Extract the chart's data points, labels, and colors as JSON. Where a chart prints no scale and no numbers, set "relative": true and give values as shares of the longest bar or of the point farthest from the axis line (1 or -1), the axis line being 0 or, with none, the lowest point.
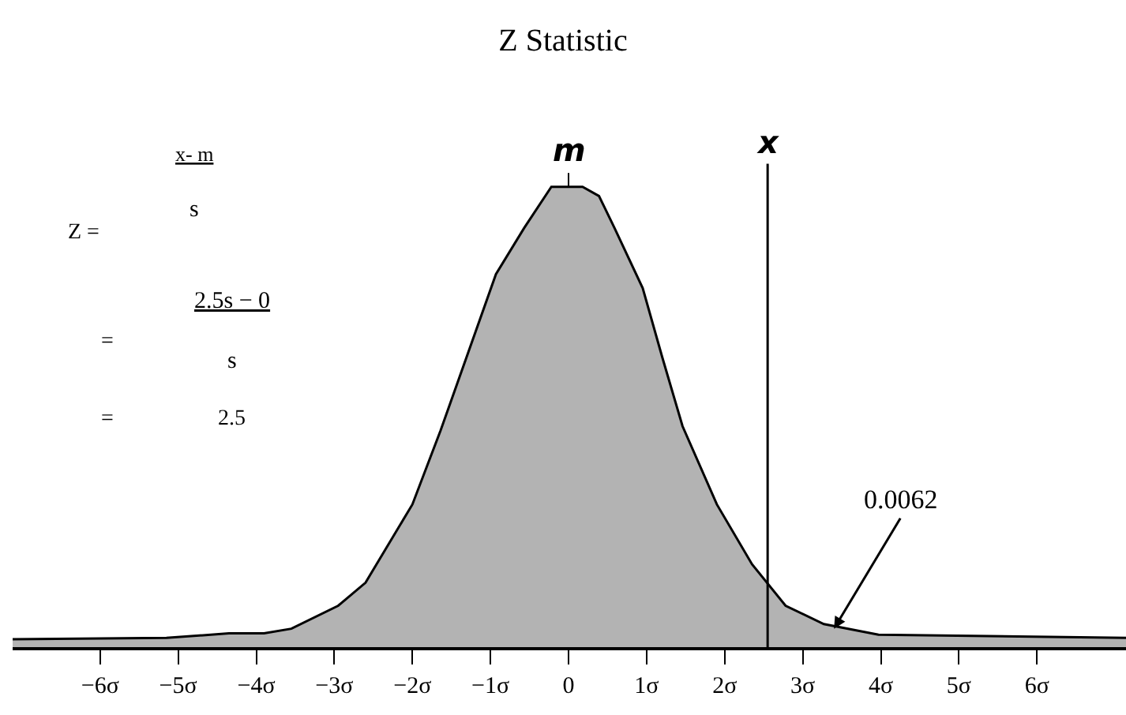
{
  "chart_data": {
    "type": "area",
    "title": "Z Statistic",
    "relative": true,
    "series": [
      {
        "color": "#b3b3b3",
        "x": [
          -7.12,
          -5.15,
          -4.35,
          -3.9,
          -3.55,
          -2.95,
          -2.6,
          -2.0,
          -1.64,
          -0.93,
          -0.57,
          -0.22,
          0.18,
          0.39,
          0.59,
          0.95,
          1.2,
          1.46,
          1.9,
          2.35,
          2.78,
          3.27,
          3.97,
          7.14
        ],
        "values": [
          0.017,
          0.02,
          0.03,
          0.03,
          0.04,
          0.09,
          0.14,
          0.31,
          0.47,
          0.81,
          0.91,
          1.0,
          1.0,
          0.98,
          0.91,
          0.78,
          0.63,
          0.48,
          0.31,
          0.18,
          0.09,
          0.05,
          0.027,
          0.02
        ]
      }
    ],
    "xlim": [
      -7.12,
      7.14
    ],
    "xticks": [
      {
        "value": -6,
        "label": "−6σ"
      },
      {
        "value": -5,
        "label": "−5σ"
      },
      {
        "value": -4,
        "label": "−4σ"
      },
      {
        "value": -3,
        "label": "−3σ"
      },
      {
        "value": -2,
        "label": "−2σ"
      },
      {
        "value": -1,
        "label": "−1σ"
      },
      0,
      {
        "value": 1,
        "label": "1σ"
      },
      {
        "value": 2,
        "label": "2σ"
      },
      {
        "value": 3,
        "label": "3σ"
      },
      {
        "value": 4,
        "label": "4σ"
      },
      {
        "value": 5,
        "label": "5σ"
      },
      {
        "value": 6,
        "label": "6σ"
      }
    ],
    "ref_lines": [
      {
        "axis": "x",
        "value": 2.55,
        "label": "x",
        "color": "#000000"
      }
    ],
    "annotations": [
      "Z =",
      "x- m",
      "s",
      "=",
      "2.5s − 0",
      "s",
      "=",
      "2.5",
      "m",
      {
        "text": "0.0062",
        "x": 3.4,
        "y": 0.04
      }
    ],
    "marker": "none",
    "line_style": "solid"
  }
}
